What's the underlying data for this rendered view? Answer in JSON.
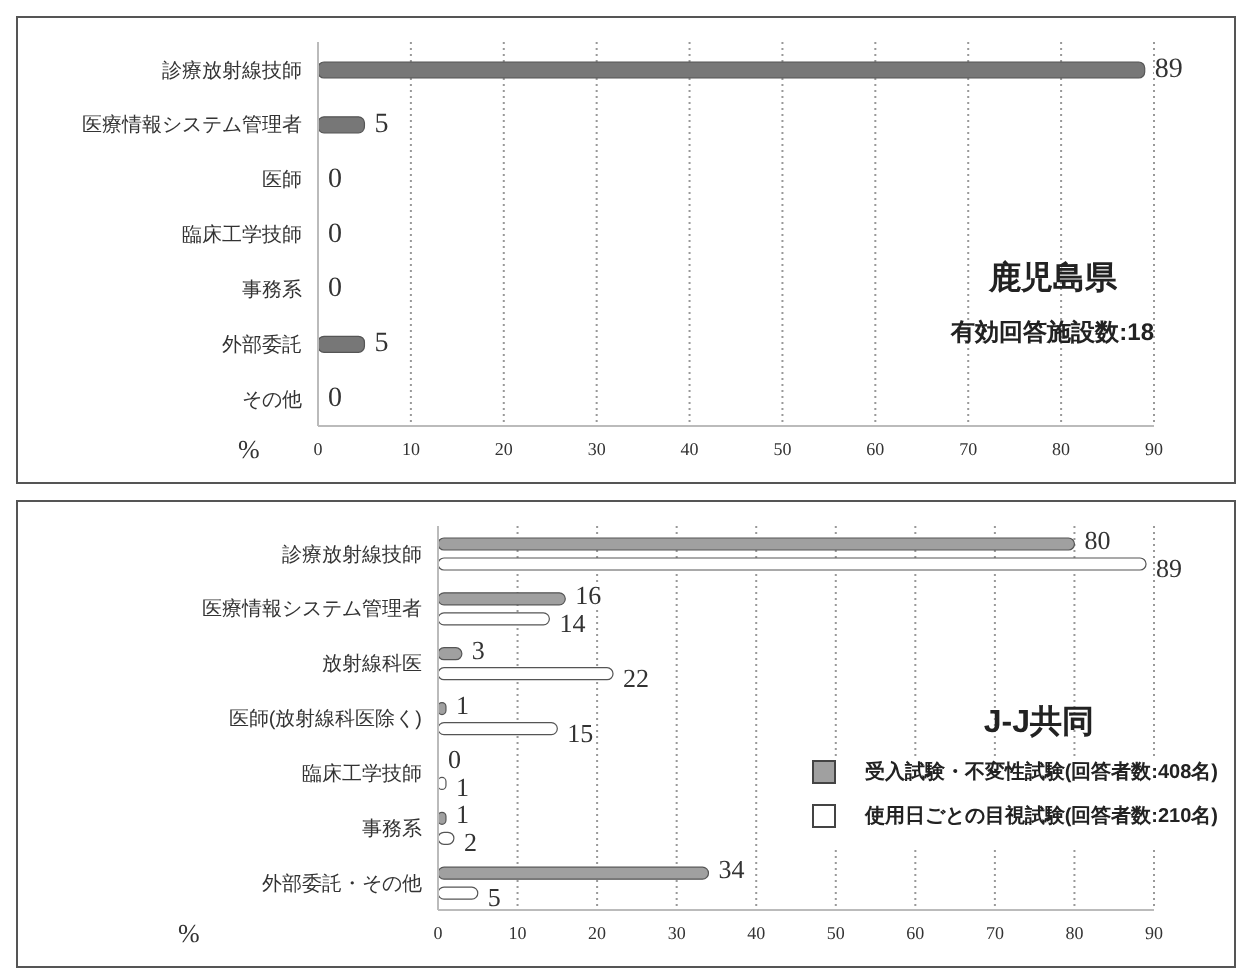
{
  "chart_data": [
    {
      "type": "bar",
      "orientation": "horizontal",
      "title": "鹿児島県",
      "subtitle": "有効回答施設数:18",
      "xlabel": "%",
      "categories": [
        "診療放射線技師",
        "医療情報システム管理者",
        "医師",
        "臨床工学技師",
        "事務系",
        "外部委託",
        "その他"
      ],
      "values": [
        89,
        5,
        0,
        0,
        0,
        5,
        0
      ],
      "color": "#777777",
      "xlim": [
        0,
        90
      ],
      "xticks": [
        0,
        10,
        20,
        30,
        40,
        50,
        60,
        70,
        80,
        90
      ],
      "grid": "x",
      "data_labels": true
    },
    {
      "type": "bar",
      "orientation": "horizontal",
      "title": "J-J共同",
      "xlabel": "%",
      "categories": [
        "診療放射線技師",
        "医療情報システム管理者",
        "放射線科医",
        "医師(放射線科医除く)",
        "臨床工学技師",
        "事務系",
        "外部委託・その他"
      ],
      "series": [
        {
          "name": "受入試験・不変性試験(回答者数:408名)",
          "color": "#a0a0a0",
          "values": [
            80,
            16,
            3,
            1,
            0,
            1,
            34
          ]
        },
        {
          "name": "使用日ごとの目視試験(回答者数:210名)",
          "color": "#ffffff",
          "values": [
            89,
            14,
            22,
            15,
            1,
            2,
            5
          ]
        }
      ],
      "xlim": [
        0,
        90
      ],
      "xticks": [
        0,
        10,
        20,
        30,
        40,
        50,
        60,
        70,
        80,
        90
      ],
      "grid": "x",
      "legend": "right",
      "data_labels": true
    }
  ]
}
